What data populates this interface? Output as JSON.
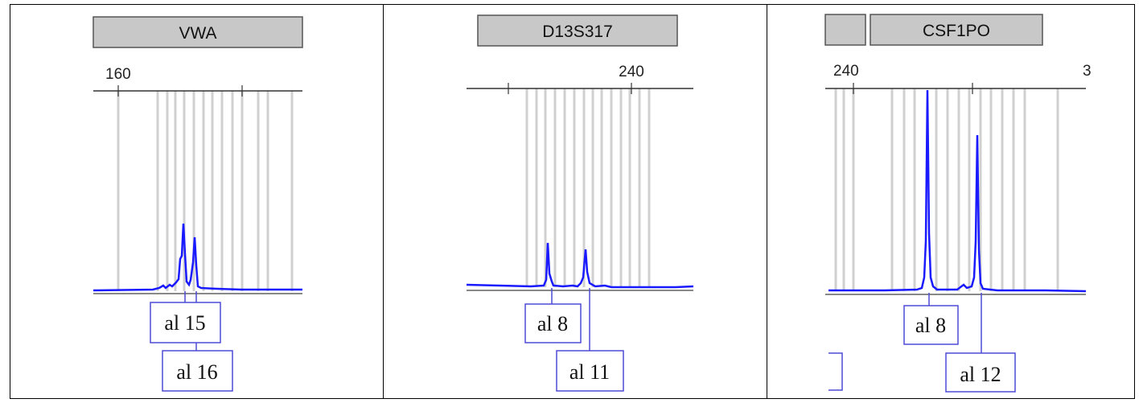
{
  "figure": {
    "panels": [
      {
        "locus_label": "VWA",
        "scale_labels": [
          "160"
        ],
        "alleles": [
          "al 15",
          "al 16"
        ]
      },
      {
        "locus_label": "D13S317",
        "scale_labels": [
          "240"
        ],
        "alleles": [
          "al 8",
          "al 11"
        ]
      },
      {
        "locus_label": "CSF1PO",
        "scale_labels": [
          "240",
          "3"
        ],
        "alleles": [
          "al 8",
          "al 12"
        ]
      }
    ]
  },
  "chart_data": [
    {
      "type": "line",
      "title": "VWA",
      "x_tick_labels": [
        "160"
      ],
      "series": [
        {
          "peaks": [
            {
              "label": "al 15",
              "relative_height": 0.33
            },
            {
              "label": "al 16",
              "relative_height": 0.27
            }
          ]
        }
      ],
      "colors": {
        "trace": "#1a1aff",
        "bins": "#cfcfcf"
      }
    },
    {
      "type": "line",
      "title": "D13S317",
      "x_tick_labels": [
        "240"
      ],
      "series": [
        {
          "peaks": [
            {
              "label": "al 8",
              "relative_height": 0.25
            },
            {
              "label": "al 11",
              "relative_height": 0.22
            }
          ]
        }
      ],
      "colors": {
        "trace": "#1a1aff",
        "bins": "#cfcfcf"
      }
    },
    {
      "type": "line",
      "title": "CSF1PO",
      "x_tick_labels": [
        "240",
        "3"
      ],
      "series": [
        {
          "peaks": [
            {
              "label": "al 8",
              "relative_height": 1.0
            },
            {
              "label": "al 12",
              "relative_height": 0.76
            }
          ]
        }
      ],
      "colors": {
        "trace": "#1a1aff",
        "bins": "#cfcfcf"
      }
    }
  ]
}
